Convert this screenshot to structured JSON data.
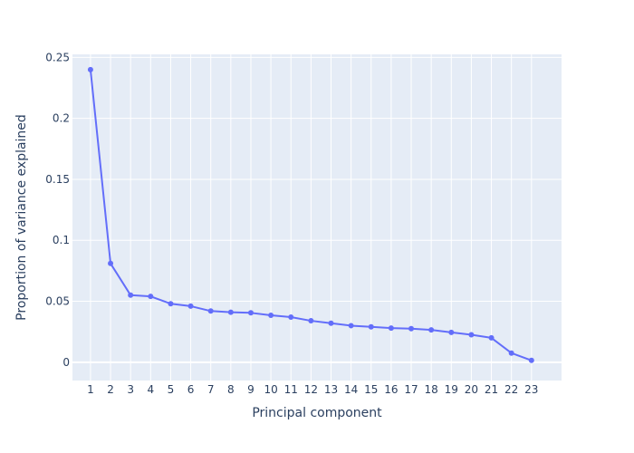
{
  "chart_data": {
    "type": "line",
    "title": "",
    "xlabel": "Principal component",
    "ylabel": "Proportion of variance explained",
    "categories": [
      "1",
      "2",
      "3",
      "4",
      "5",
      "6",
      "7",
      "8",
      "9",
      "10",
      "11",
      "12",
      "13",
      "14",
      "15",
      "16",
      "17",
      "18",
      "19",
      "20",
      "21",
      "22",
      "23"
    ],
    "x": [
      1,
      2,
      3,
      4,
      5,
      6,
      7,
      8,
      9,
      10,
      11,
      12,
      13,
      14,
      15,
      16,
      17,
      18,
      19,
      20,
      21,
      22,
      23
    ],
    "series": [
      {
        "values": [
          0.24,
          0.081,
          0.055,
          0.054,
          0.048,
          0.046,
          0.042,
          0.041,
          0.0405,
          0.0385,
          0.037,
          0.034,
          0.032,
          0.03,
          0.029,
          0.028,
          0.0275,
          0.0265,
          0.0245,
          0.0225,
          0.02,
          0.0075,
          0.0015
        ]
      }
    ],
    "yticks": [
      0,
      0.05,
      0.1,
      0.15,
      0.2,
      0.25
    ],
    "yticklabels": [
      "0",
      "0.05",
      "0.1",
      "0.15",
      "0.2",
      "0.25"
    ],
    "xlim": [
      0.1,
      24.5
    ],
    "ylim": [
      -0.015,
      0.2525
    ],
    "grid": true,
    "colors": {
      "plot_background": "#e5ecf6",
      "grid": "#ffffff",
      "line": "#636efa",
      "text": "#2a3f5f"
    }
  }
}
